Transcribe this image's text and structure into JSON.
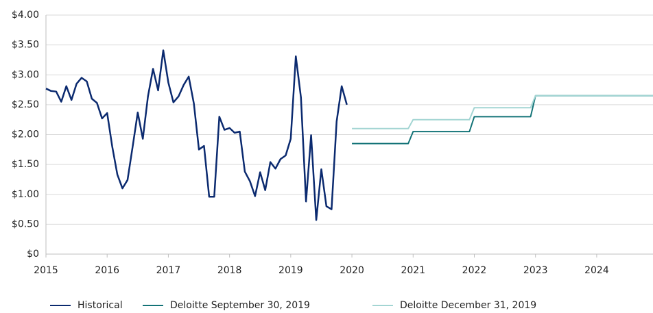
{
  "chart_data": {
    "type": "line",
    "xlim": [
      2015,
      2024.92
    ],
    "xticks": [
      2015,
      2016,
      2017,
      2018,
      2019,
      2020,
      2021,
      2022,
      2023,
      2024
    ],
    "ylim": [
      0,
      4
    ],
    "yticks": [
      {
        "value": 0,
        "label": "$0"
      },
      {
        "value": 0.5,
        "label": "$0.50"
      },
      {
        "value": 1,
        "label": "$1.00"
      },
      {
        "value": 1.5,
        "label": "$1.50"
      },
      {
        "value": 2,
        "label": "$2.00"
      },
      {
        "value": 2.5,
        "label": "$2.50"
      },
      {
        "value": 3,
        "label": "$3.00"
      },
      {
        "value": 3.5,
        "label": "$3.50"
      },
      {
        "value": 4,
        "label": "$4.00"
      }
    ],
    "grid": true,
    "legend": "bottom",
    "series": [
      {
        "name": "Historical",
        "color": "#0b2a6f",
        "x": [
          2015,
          2015.083,
          2015.167,
          2015.25,
          2015.333,
          2015.417,
          2015.5,
          2015.583,
          2015.667,
          2015.75,
          2015.833,
          2015.917,
          2016,
          2016.083,
          2016.167,
          2016.25,
          2016.333,
          2016.417,
          2016.5,
          2016.583,
          2016.667,
          2016.75,
          2016.833,
          2016.917,
          2017,
          2017.083,
          2017.167,
          2017.25,
          2017.333,
          2017.417,
          2017.5,
          2017.583,
          2017.667,
          2017.75,
          2017.833,
          2017.917,
          2018,
          2018.083,
          2018.167,
          2018.25,
          2018.333,
          2018.417,
          2018.5,
          2018.583,
          2018.667,
          2018.75,
          2018.833,
          2018.917,
          2019,
          2019.083,
          2019.167,
          2019.25,
          2019.333,
          2019.417,
          2019.5,
          2019.583,
          2019.667,
          2019.75,
          2019.833,
          2019.917
        ],
        "values": [
          2.77,
          2.73,
          2.72,
          2.55,
          2.81,
          2.58,
          2.85,
          2.95,
          2.89,
          2.6,
          2.53,
          2.27,
          2.36,
          1.8,
          1.33,
          1.1,
          1.24,
          1.8,
          2.37,
          1.93,
          2.64,
          3.1,
          2.74,
          3.41,
          2.87,
          2.54,
          2.64,
          2.83,
          2.97,
          2.52,
          1.75,
          1.81,
          0.96,
          0.96,
          2.3,
          2.08,
          2.11,
          2.03,
          2.05,
          1.38,
          1.22,
          0.97,
          1.37,
          1.07,
          1.54,
          1.43,
          1.59,
          1.65,
          1.93,
          3.31,
          2.62,
          0.88,
          1.99,
          0.57,
          1.42,
          0.8,
          0.75,
          2.22,
          2.81,
          2.5
        ]
      },
      {
        "name": "Deloitte September 30, 2019",
        "color": "#137377",
        "x": [
          2020,
          2020.92,
          2021,
          2021.92,
          2022,
          2022.92,
          2023,
          2024.92
        ],
        "values": [
          1.85,
          1.85,
          2.05,
          2.05,
          2.3,
          2.3,
          2.65,
          2.65
        ]
      },
      {
        "name": "Deloitte December 31, 2019",
        "color": "#a3d5d3",
        "x": [
          2020,
          2020.92,
          2021,
          2021.92,
          2022,
          2022.92,
          2023,
          2024.92
        ],
        "values": [
          2.1,
          2.1,
          2.25,
          2.25,
          2.45,
          2.45,
          2.65,
          2.65
        ]
      }
    ]
  }
}
